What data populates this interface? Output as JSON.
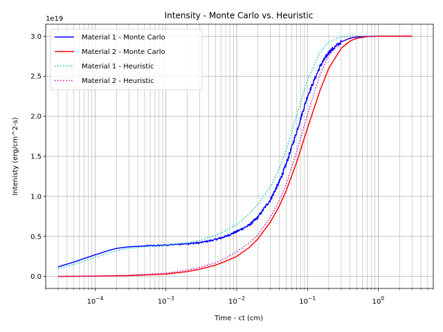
{
  "chart_data": {
    "type": "line",
    "title": "Intensity - Monte Carlo vs. Heuristic",
    "xlabel": "Time - ct (cm)",
    "ylabel": "Intenisty (erg/cm^2-s)",
    "y_offset_label": "1e19",
    "x_scale": "log",
    "xlim": [
      2e-05,
      6
    ],
    "ylim": [
      -0.15,
      3.15
    ],
    "y_multiplier": 1e+19,
    "grid": "on (major and minor x)",
    "legend_placement": "top-left",
    "x_ticks": [
      {
        "value": 0.0001,
        "base": "10",
        "exp": "−4"
      },
      {
        "value": 0.001,
        "base": "10",
        "exp": "−3"
      },
      {
        "value": 0.01,
        "base": "10",
        "exp": "−2"
      },
      {
        "value": 0.1,
        "base": "10",
        "exp": "−1"
      },
      {
        "value": 1,
        "base": "10",
        "exp": "0"
      }
    ],
    "y_ticks": [
      {
        "value": 0.0,
        "label": "0.0"
      },
      {
        "value": 0.5,
        "label": "0.5"
      },
      {
        "value": 1.0,
        "label": "1.0"
      },
      {
        "value": 1.5,
        "label": "1.5"
      },
      {
        "value": 2.0,
        "label": "2.0"
      },
      {
        "value": 2.5,
        "label": "2.5"
      },
      {
        "value": 3.0,
        "label": "3.0"
      }
    ],
    "series": [
      {
        "name": "Material 1 - Monte Carlo",
        "color": "#0000ff",
        "style": "solid",
        "noisy": true,
        "x": [
          3e-05,
          5e-05,
          0.0001,
          0.00015,
          0.0002,
          0.0003,
          0.0005,
          0.001,
          0.002,
          0.003,
          0.005,
          0.007,
          0.01,
          0.015,
          0.02,
          0.03,
          0.04,
          0.05,
          0.07,
          0.1,
          0.15,
          0.2,
          0.3,
          0.4,
          0.5,
          0.7,
          1,
          2,
          3
        ],
        "y": [
          0.12,
          0.18,
          0.27,
          0.32,
          0.35,
          0.37,
          0.38,
          0.39,
          0.41,
          0.42,
          0.46,
          0.5,
          0.56,
          0.64,
          0.74,
          0.96,
          1.18,
          1.4,
          1.8,
          2.25,
          2.62,
          2.8,
          2.93,
          2.975,
          2.99,
          2.998,
          3.0,
          3.0,
          3.0
        ]
      },
      {
        "name": "Material 2 - Monte Carlo",
        "color": "#ff0000",
        "style": "solid",
        "noisy": false,
        "x": [
          3e-05,
          0.0001,
          0.0003,
          0.001,
          0.002,
          0.003,
          0.005,
          0.007,
          0.01,
          0.015,
          0.02,
          0.03,
          0.04,
          0.05,
          0.07,
          0.1,
          0.15,
          0.2,
          0.3,
          0.4,
          0.5,
          0.7,
          1,
          2,
          3
        ],
        "y": [
          0.0,
          0.003,
          0.01,
          0.03,
          0.06,
          0.09,
          0.14,
          0.19,
          0.25,
          0.36,
          0.47,
          0.68,
          0.88,
          1.07,
          1.42,
          1.85,
          2.32,
          2.6,
          2.85,
          2.94,
          2.975,
          2.995,
          3.0,
          3.0,
          3.0
        ]
      },
      {
        "name": "Material 1 - Heuristic",
        "color": "#00bfbf",
        "style": "dotted",
        "noisy": false,
        "x": [
          3e-05,
          5e-05,
          0.0001,
          0.0002,
          0.0003,
          0.0005,
          0.001,
          0.002,
          0.003,
          0.005,
          0.007,
          0.01,
          0.015,
          0.02,
          0.03,
          0.04,
          0.05,
          0.07,
          0.1,
          0.15,
          0.2,
          0.3,
          0.4,
          0.5,
          0.7,
          1
        ],
        "y": [
          0.1,
          0.15,
          0.24,
          0.32,
          0.35,
          0.37,
          0.39,
          0.42,
          0.45,
          0.51,
          0.57,
          0.65,
          0.78,
          0.9,
          1.12,
          1.35,
          1.58,
          2.0,
          2.45,
          2.8,
          2.93,
          2.99,
          3.0,
          3.0,
          3.0,
          3.0
        ]
      },
      {
        "name": "Material 2 - Heuristic",
        "color": "#bf00bf",
        "style": "dotted",
        "noisy": false,
        "x": [
          3e-05,
          0.0001,
          0.0003,
          0.001,
          0.002,
          0.003,
          0.005,
          0.007,
          0.01,
          0.015,
          0.02,
          0.03,
          0.04,
          0.05,
          0.07,
          0.1,
          0.15,
          0.2,
          0.3,
          0.4,
          0.5,
          0.7,
          1
        ],
        "y": [
          0.0,
          0.005,
          0.015,
          0.04,
          0.08,
          0.11,
          0.17,
          0.23,
          0.31,
          0.42,
          0.52,
          0.74,
          0.95,
          1.15,
          1.55,
          2.02,
          2.52,
          2.76,
          2.93,
          2.98,
          2.995,
          3.0,
          3.0
        ]
      }
    ]
  }
}
